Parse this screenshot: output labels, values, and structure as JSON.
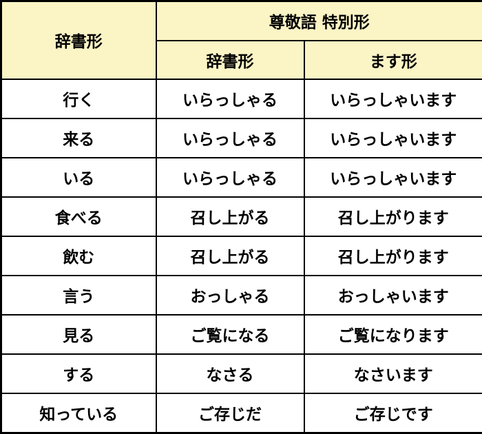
{
  "table": {
    "header": {
      "dictionary_form": "辞書形",
      "sonkeigo_title": "尊敬語 特別形",
      "sub_dictionary_form": "辞書形",
      "sub_masu_form": "ます形"
    },
    "rows": [
      {
        "dictionary": "行く",
        "sonkeigo_dictionary": "いらっしゃる",
        "sonkeigo_masu": "いらっしゃいます"
      },
      {
        "dictionary": "来る",
        "sonkeigo_dictionary": "いらっしゃる",
        "sonkeigo_masu": "いらっしゃいます"
      },
      {
        "dictionary": "いる",
        "sonkeigo_dictionary": "いらっしゃる",
        "sonkeigo_masu": "いらっしゃいます"
      },
      {
        "dictionary": "食べる",
        "sonkeigo_dictionary": "召し上がる",
        "sonkeigo_masu": "召し上がります"
      },
      {
        "dictionary": "飲む",
        "sonkeigo_dictionary": "召し上がる",
        "sonkeigo_masu": "召し上がります"
      },
      {
        "dictionary": "言う",
        "sonkeigo_dictionary": "おっしゃる",
        "sonkeigo_masu": "おっしゃいます"
      },
      {
        "dictionary": "見る",
        "sonkeigo_dictionary": "ご覧になる",
        "sonkeigo_masu": "ご覧になります"
      },
      {
        "dictionary": "する",
        "sonkeigo_dictionary": "なさる",
        "sonkeigo_masu": "なさいます"
      },
      {
        "dictionary": "知っている",
        "sonkeigo_dictionary": "ご存じだ",
        "sonkeigo_masu": "ご存じです"
      }
    ],
    "colors": {
      "header_background": "#FBF4C5",
      "border": "#000000",
      "body_background": "#FFFFFF",
      "text": "#000000"
    }
  }
}
